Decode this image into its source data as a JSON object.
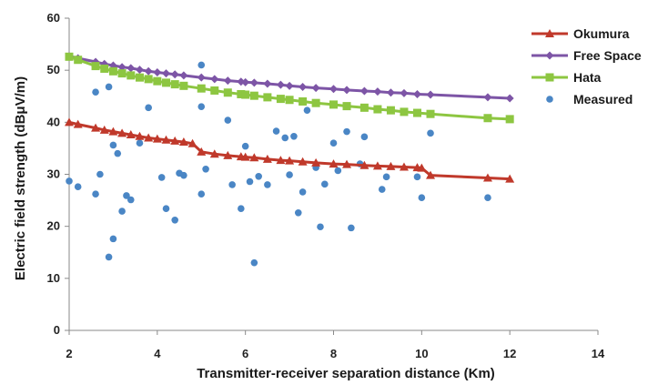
{
  "chart_data": {
    "type": "scatter",
    "title": "",
    "xlabel": "Transmitter-receiver separation distance (Km)",
    "ylabel": "Electric field strength (dBμV/m)",
    "xlim": [
      2,
      14
    ],
    "ylim": [
      0,
      60
    ],
    "xticks": [
      2,
      4,
      6,
      8,
      10,
      12,
      14
    ],
    "yticks": [
      0,
      10,
      20,
      30,
      40,
      50,
      60
    ],
    "grid": false,
    "legend_position": "top-right",
    "series": [
      {
        "name": "Okumura",
        "style": "line-triangle",
        "color": "#c0392b",
        "x": [
          2.0,
          2.2,
          2.6,
          2.8,
          3.0,
          3.2,
          3.4,
          3.6,
          3.8,
          4.0,
          4.2,
          4.4,
          4.6,
          4.8,
          5.0,
          5.3,
          5.6,
          5.9,
          6.0,
          6.2,
          6.5,
          6.8,
          7.0,
          7.3,
          7.6,
          8.0,
          8.3,
          8.7,
          9.0,
          9.3,
          9.6,
          9.9,
          10.0,
          10.2,
          11.5,
          12.0
        ],
        "y": [
          40.0,
          39.6,
          38.9,
          38.5,
          38.2,
          37.9,
          37.6,
          37.3,
          37.0,
          36.8,
          36.6,
          36.4,
          36.2,
          35.9,
          34.3,
          33.9,
          33.6,
          33.4,
          33.3,
          33.2,
          32.9,
          32.7,
          32.6,
          32.4,
          32.2,
          32.0,
          31.9,
          31.7,
          31.6,
          31.5,
          31.4,
          31.3,
          31.2,
          29.8,
          29.3,
          29.1
        ]
      },
      {
        "name": "Free Space",
        "style": "line-diamond",
        "color": "#7d55a6",
        "x": [
          2.0,
          2.2,
          2.6,
          2.8,
          3.0,
          3.2,
          3.4,
          3.6,
          3.8,
          4.0,
          4.2,
          4.4,
          4.6,
          5.0,
          5.3,
          5.6,
          5.9,
          6.0,
          6.2,
          6.5,
          6.8,
          7.0,
          7.3,
          7.6,
          8.0,
          8.3,
          8.7,
          9.0,
          9.3,
          9.6,
          9.9,
          10.2,
          11.5,
          12.0
        ],
        "y": [
          52.7,
          52.3,
          51.6,
          51.2,
          50.9,
          50.6,
          50.4,
          50.1,
          49.8,
          49.6,
          49.4,
          49.2,
          49.0,
          48.6,
          48.3,
          48.0,
          47.8,
          47.7,
          47.6,
          47.4,
          47.2,
          47.0,
          46.8,
          46.6,
          46.4,
          46.2,
          46.0,
          45.9,
          45.7,
          45.6,
          45.4,
          45.3,
          44.8,
          44.6
        ]
      },
      {
        "name": "Hata",
        "style": "line-square",
        "color": "#8dc641",
        "x": [
          2.0,
          2.2,
          2.6,
          2.8,
          3.0,
          3.2,
          3.4,
          3.6,
          3.8,
          4.0,
          4.2,
          4.4,
          4.6,
          5.0,
          5.3,
          5.6,
          5.9,
          6.0,
          6.2,
          6.5,
          6.8,
          7.0,
          7.3,
          7.6,
          8.0,
          8.3,
          8.7,
          9.0,
          9.3,
          9.6,
          9.9,
          10.2,
          11.5,
          12.0
        ],
        "y": [
          52.6,
          52.0,
          50.8,
          50.3,
          49.8,
          49.4,
          49.0,
          48.6,
          48.3,
          47.9,
          47.6,
          47.3,
          47.0,
          46.5,
          46.1,
          45.7,
          45.4,
          45.3,
          45.1,
          44.8,
          44.5,
          44.3,
          44.0,
          43.7,
          43.4,
          43.1,
          42.8,
          42.5,
          42.3,
          42.0,
          41.8,
          41.6,
          40.8,
          40.6
        ]
      },
      {
        "name": "Measured",
        "style": "marker-circle",
        "color": "#4a86c5",
        "x": [
          2.0,
          2.2,
          2.6,
          2.7,
          2.6,
          2.9,
          2.9,
          3.0,
          3.0,
          3.1,
          3.2,
          3.3,
          3.4,
          3.6,
          3.8,
          4.1,
          4.2,
          4.4,
          4.5,
          4.6,
          5.0,
          5.0,
          5.0,
          5.1,
          5.6,
          5.7,
          5.9,
          6.0,
          6.1,
          6.2,
          6.3,
          6.5,
          6.7,
          6.9,
          7.0,
          7.1,
          7.2,
          7.3,
          7.4,
          7.6,
          7.7,
          7.8,
          8.0,
          8.1,
          8.3,
          8.4,
          8.6,
          8.7,
          9.1,
          9.2,
          9.9,
          10.0,
          10.2,
          11.5
        ],
        "y": [
          28.7,
          27.6,
          45.8,
          30.0,
          26.2,
          14.1,
          46.8,
          17.6,
          35.6,
          34.0,
          22.9,
          25.9,
          25.1,
          36.0,
          42.8,
          29.4,
          23.4,
          21.2,
          30.2,
          29.8,
          51.0,
          43.0,
          26.2,
          31.0,
          40.4,
          28.0,
          23.4,
          35.4,
          28.6,
          13.0,
          29.6,
          28.0,
          38.3,
          37.0,
          29.9,
          37.3,
          22.6,
          26.6,
          42.3,
          31.3,
          19.9,
          28.1,
          36.0,
          30.7,
          38.2,
          19.7,
          32.0,
          37.2,
          27.1,
          29.5,
          29.5,
          25.5,
          37.9,
          25.5
        ]
      }
    ]
  }
}
